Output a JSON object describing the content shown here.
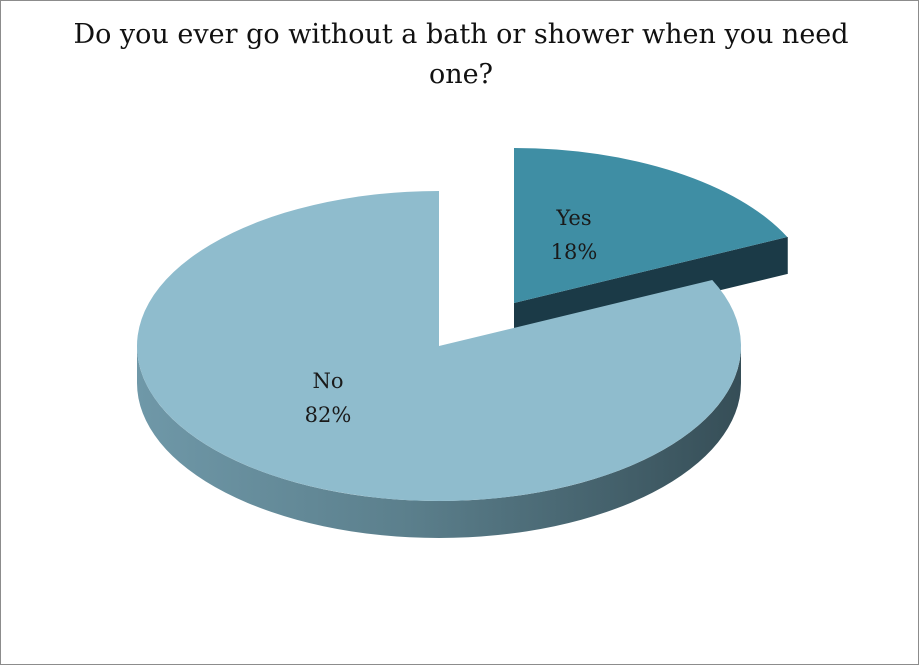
{
  "chart_data": {
    "type": "pie",
    "title": "Do you ever go without a bath or shower when you need one?",
    "categories": [
      "Yes",
      "No"
    ],
    "values": [
      18,
      82
    ],
    "value_labels": [
      "18%",
      "82%"
    ],
    "exploded": "Yes",
    "style": "3d",
    "legend": "none",
    "colors": {
      "Yes": {
        "top": "#3f8ea4",
        "side_dark": "#1b3a47",
        "side_light": "#2c5f70"
      },
      "No": {
        "top": "#8fbccd",
        "side_dark": "#364e57",
        "side_light": "#6f98a8"
      }
    }
  }
}
